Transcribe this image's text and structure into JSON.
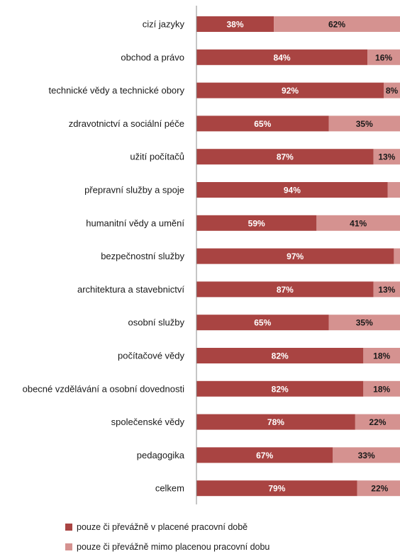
{
  "chart_data": {
    "type": "bar",
    "orientation": "horizontal",
    "stacked": true,
    "categories": [
      "cizí jazyky",
      "obchod a právo",
      "technické vědy a technické obory",
      "zdravotnictví a sociální péče",
      "užití počítačů",
      "přepravní služby a spoje",
      "humanitní vědy a umění",
      "bezpečnostní služby",
      "architektura a stavebnictví",
      "osobní služby",
      "počítačové vědy",
      "obecné vzdělávání a osobní dovednosti",
      "společenské vědy",
      "pedagogika",
      "celkem"
    ],
    "series": [
      {
        "name": "pouze či převážně v placené pracovní době",
        "color": "#a94442",
        "values": [
          38,
          84,
          92,
          65,
          87,
          94,
          59,
          97,
          87,
          65,
          82,
          82,
          78,
          67,
          79
        ],
        "labels": [
          "38%",
          "84%",
          "92%",
          "65%",
          "87%",
          "94%",
          "59%",
          "97%",
          "87%",
          "65%",
          "82%",
          "82%",
          "78%",
          "67%",
          "79%"
        ]
      },
      {
        "name": "pouze či převážně mimo placenou pracovní dobu",
        "color": "#d59290",
        "values": [
          62,
          16,
          8,
          35,
          13,
          6,
          41,
          3,
          13,
          35,
          18,
          18,
          22,
          33,
          22
        ],
        "labels": [
          "62%",
          "16%",
          "8%",
          "35%",
          "13%",
          "",
          "41%",
          "",
          "13%",
          "35%",
          "18%",
          "18%",
          "22%",
          "33%",
          "22%"
        ]
      }
    ],
    "xlim": [
      0,
      100
    ],
    "legend_position": "bottom"
  }
}
